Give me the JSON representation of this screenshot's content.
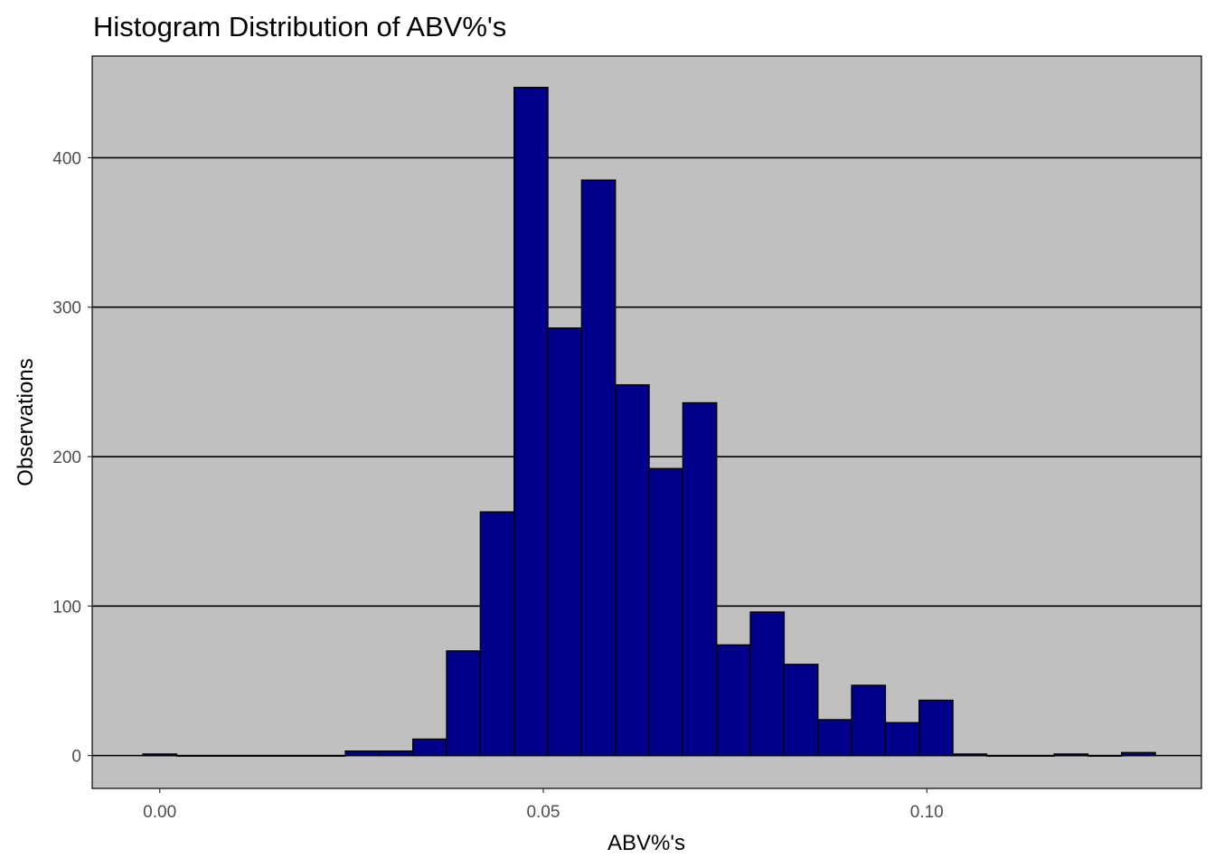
{
  "chart_data": {
    "type": "bar",
    "title": "Histogram Distribution of ABV%'s",
    "xlabel": "ABV%'s",
    "ylabel": "Observations",
    "xlim": [
      -0.0088,
      0.1358
    ],
    "ylim": [
      -22,
      468
    ],
    "x_ticks": [
      0.0,
      0.05,
      0.1
    ],
    "x_tick_labels": [
      "0.00",
      "0.05",
      "0.10"
    ],
    "y_ticks": [
      0,
      100,
      200,
      300,
      400
    ],
    "y_tick_labels": [
      "0",
      "100",
      "200",
      "300",
      "400"
    ],
    "grid": "horizontal-major",
    "colors": {
      "panel": "#c0c0c0",
      "bar_fill": "#00008b",
      "bar_outline": "#000000",
      "grid": "#000000"
    },
    "bin_width": 0.0044,
    "bins": [
      {
        "x": 0.0,
        "count": 1
      },
      {
        "x": 0.0044,
        "count": 0
      },
      {
        "x": 0.0088,
        "count": 0
      },
      {
        "x": 0.0132,
        "count": 0
      },
      {
        "x": 0.0176,
        "count": 0
      },
      {
        "x": 0.022,
        "count": 0
      },
      {
        "x": 0.0264,
        "count": 3
      },
      {
        "x": 0.0308,
        "count": 3
      },
      {
        "x": 0.0352,
        "count": 11
      },
      {
        "x": 0.0396,
        "count": 70
      },
      {
        "x": 0.044,
        "count": 163
      },
      {
        "x": 0.0484,
        "count": 447
      },
      {
        "x": 0.0528,
        "count": 286
      },
      {
        "x": 0.0572,
        "count": 385
      },
      {
        "x": 0.0616,
        "count": 248
      },
      {
        "x": 0.066,
        "count": 192
      },
      {
        "x": 0.0704,
        "count": 236
      },
      {
        "x": 0.0748,
        "count": 74
      },
      {
        "x": 0.0792,
        "count": 96
      },
      {
        "x": 0.0836,
        "count": 61
      },
      {
        "x": 0.088,
        "count": 24
      },
      {
        "x": 0.0924,
        "count": 47
      },
      {
        "x": 0.0968,
        "count": 22
      },
      {
        "x": 0.1012,
        "count": 37
      },
      {
        "x": 0.1056,
        "count": 1
      },
      {
        "x": 0.11,
        "count": 0
      },
      {
        "x": 0.1144,
        "count": 0
      },
      {
        "x": 0.1188,
        "count": 1
      },
      {
        "x": 0.1232,
        "count": 0
      },
      {
        "x": 0.1276,
        "count": 2
      }
    ]
  }
}
